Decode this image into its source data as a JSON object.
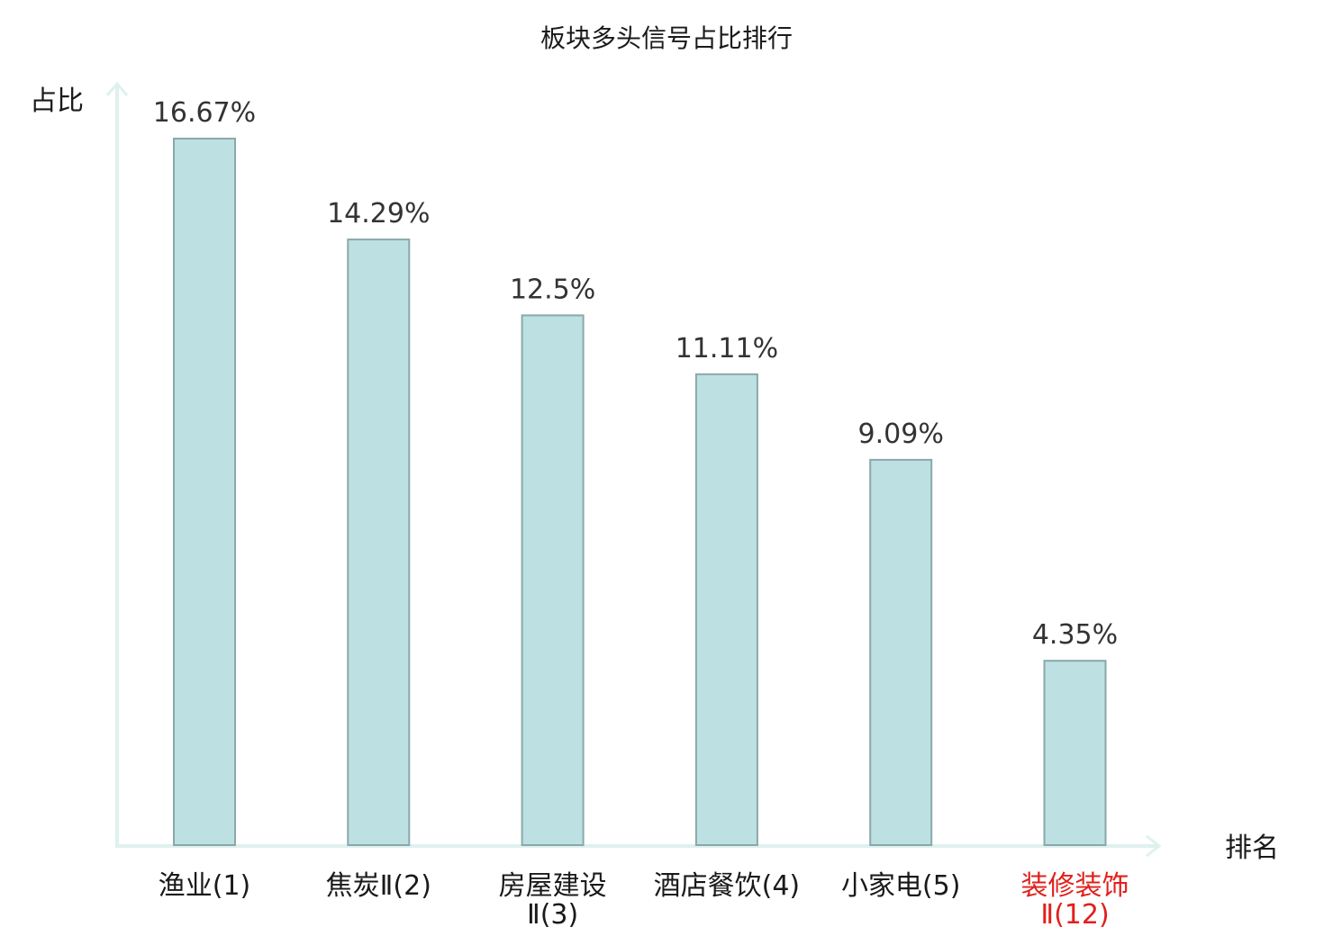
{
  "chart_data": {
    "type": "bar",
    "title": "板块多头信号占比排行",
    "xlabel": "排名",
    "ylabel": "占比",
    "categories": [
      "渔业(1)",
      "焦炭Ⅱ(2)",
      "房屋建设Ⅱ(3)",
      "酒店餐饮(4)",
      "小家电(5)",
      "装修装饰Ⅱ(12)"
    ],
    "category_lines": [
      [
        "渔业(1)"
      ],
      [
        "焦炭Ⅱ(2)"
      ],
      [
        "房屋建设",
        "Ⅱ(3)"
      ],
      [
        "酒店餐饮(4)"
      ],
      [
        "小家电(5)"
      ],
      [
        "装修装饰",
        "Ⅱ(12)"
      ]
    ],
    "values": [
      16.67,
      14.29,
      12.5,
      11.11,
      9.09,
      4.35
    ],
    "value_labels": [
      "16.67%",
      "14.29%",
      "12.5%",
      "11.11%",
      "9.09%",
      "4.35%"
    ],
    "highlight_index": 5,
    "ylim": [
      0,
      16.67
    ],
    "grid": false,
    "colors": {
      "bar_fill": "#bde0e3",
      "bar_stroke": "#8aa8aa",
      "axis": "#dff1ee",
      "label": "#1a1a1a",
      "value_label": "#333333",
      "highlight": "#e0201c"
    }
  }
}
